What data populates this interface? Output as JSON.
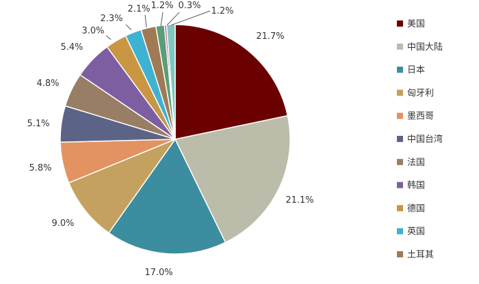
{
  "chart_data": {
    "type": "pie",
    "title": "",
    "legend_position": "right",
    "series": [
      {
        "name": "美国",
        "value": 21.7,
        "label": "21.7%",
        "color": "#6b0000"
      },
      {
        "name": "中国大陆",
        "value": 21.1,
        "label": "21.1%",
        "color": "#bcbcaa"
      },
      {
        "name": "日本",
        "value": 17.0,
        "label": "17.0%",
        "color": "#3c8da0"
      },
      {
        "name": "匈牙利",
        "value": 9.0,
        "label": "9.0%",
        "color": "#c4a15e"
      },
      {
        "name": "墨西哥",
        "value": 5.8,
        "label": "5.8%",
        "color": "#e29361"
      },
      {
        "name": "中国台湾",
        "value": 5.1,
        "label": "5.1%",
        "color": "#5b6486"
      },
      {
        "name": "法国",
        "value": 4.8,
        "label": "4.8%",
        "color": "#977e65"
      },
      {
        "name": "韩国",
        "value": 5.4,
        "label": "5.4%",
        "color": "#7d5fa1"
      },
      {
        "name": "德国",
        "value": 3.0,
        "label": "3.0%",
        "color": "#c99643"
      },
      {
        "name": "英国",
        "value": 2.3,
        "label": "2.3%",
        "color": "#3fb2d2"
      },
      {
        "name": "土耳其",
        "value": 2.1,
        "label": "2.1%",
        "color": "#a07a55"
      },
      {
        "name": "",
        "value": 1.2,
        "label": "1.2%",
        "color": "#5a9e78"
      },
      {
        "name": "",
        "value": 0.3,
        "label": "0.3%",
        "color": "#c860a0"
      },
      {
        "name": "",
        "value": 1.2,
        "label": "1.2%",
        "color": "#7fc8c0"
      }
    ]
  }
}
